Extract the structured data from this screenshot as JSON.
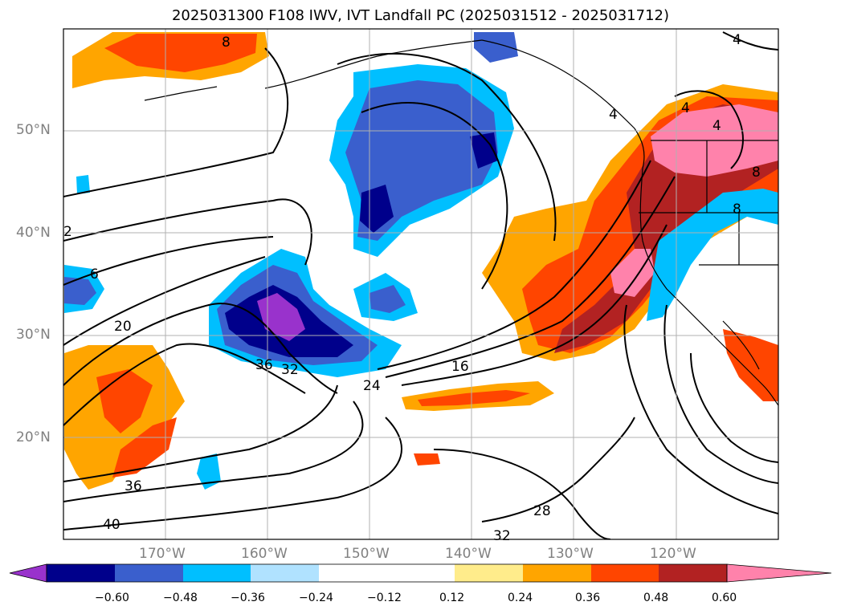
{
  "title": "2025031300 F108 IWV, IVT Landfall PC (2025031512 - 2025031712)",
  "lat_labels": [
    "50°N",
    "40°N",
    "30°N",
    "20°N"
  ],
  "lon_labels": [
    "170°W",
    "160°W",
    "150°W",
    "140°W",
    "130°W",
    "120°W"
  ],
  "contour_labels": [
    "8",
    "4",
    "4",
    "4",
    "4",
    "8",
    "8",
    "2",
    "6",
    "20",
    "36",
    "32",
    "24",
    "16",
    "36",
    "40",
    "28",
    "32"
  ],
  "colorbar": {
    "ticks": [
      "−0.60",
      "−0.48",
      "−0.36",
      "−0.24",
      "−0.12",
      "0.12",
      "0.24",
      "0.36",
      "0.48",
      "0.60"
    ],
    "colors": [
      "#9932cc",
      "#00008b",
      "#3a5fcd",
      "#00bfff",
      "#b0e2ff",
      "#ffffff",
      "#ffec8b",
      "#ffa500",
      "#ff4500",
      "#b22222",
      "#ff82ab"
    ]
  }
}
